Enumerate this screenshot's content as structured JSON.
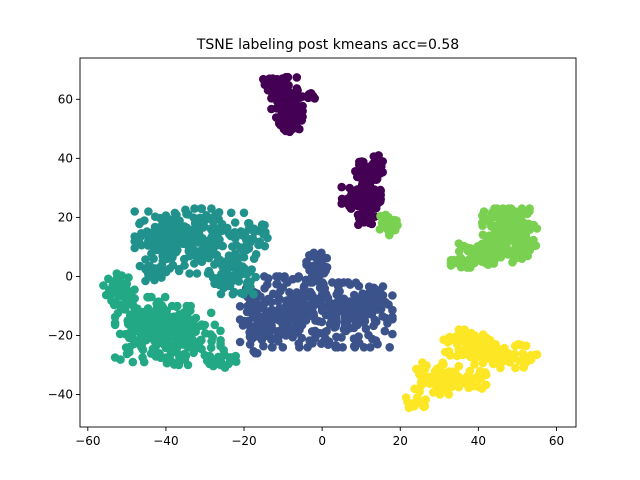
{
  "chart_data": {
    "type": "scatter",
    "title": "TSNE labeling post kmeans acc=0.58",
    "xlabel": "",
    "ylabel": "",
    "xlim": [
      -62,
      65
    ],
    "ylim": [
      -51,
      74
    ],
    "xticks": [
      -60,
      -40,
      -20,
      0,
      20,
      40,
      60
    ],
    "yticks": [
      -40,
      -20,
      0,
      20,
      40,
      60
    ],
    "xtick_labels": [
      "−60",
      "−40",
      "−20",
      "0",
      "20",
      "40",
      "60"
    ],
    "ytick_labels": [
      "−40",
      "−20",
      "0",
      "20",
      "40",
      "60"
    ],
    "grid": false,
    "legend": "none",
    "clusters": [
      {
        "label": 0,
        "color": "#440154",
        "blobs": [
          {
            "cx": -11,
            "cy": 65,
            "rx": 4.5,
            "ry": 2.5,
            "n": 50
          },
          {
            "cx": -9,
            "cy": 58,
            "rx": 4,
            "ry": 5,
            "n": 60
          },
          {
            "cx": -8,
            "cy": 52,
            "rx": 3,
            "ry": 3,
            "n": 40
          },
          {
            "cx": -3,
            "cy": 61,
            "rx": 1.5,
            "ry": 1.2,
            "n": 12
          },
          {
            "cx": 12,
            "cy": 36,
            "rx": 3.5,
            "ry": 5,
            "n": 60
          },
          {
            "cx": 10,
            "cy": 27,
            "rx": 5,
            "ry": 4,
            "n": 70
          },
          {
            "cx": 11,
            "cy": 20,
            "rx": 2.5,
            "ry": 2.5,
            "n": 30
          }
        ]
      },
      {
        "label": 1,
        "color": "#3b528b",
        "blobs": [
          {
            "cx": -17,
            "cy": -15,
            "rx": 4,
            "ry": 11,
            "n": 90
          },
          {
            "cx": -8,
            "cy": -12,
            "rx": 8,
            "ry": 12,
            "n": 160
          },
          {
            "cx": -1,
            "cy": 3,
            "rx": 3,
            "ry": 5,
            "n": 40
          },
          {
            "cx": 6,
            "cy": -13,
            "rx": 12,
            "ry": 11,
            "n": 200
          },
          {
            "cx": 12,
            "cy": -8,
            "rx": 4,
            "ry": 4,
            "n": 30
          }
        ]
      },
      {
        "label": 2,
        "color": "#21918c",
        "blobs": [
          {
            "cx": -40,
            "cy": 14,
            "rx": 8,
            "ry": 8,
            "n": 100
          },
          {
            "cx": -30,
            "cy": 12,
            "rx": 10,
            "ry": 11,
            "n": 160
          },
          {
            "cx": -23,
            "cy": 0,
            "rx": 6,
            "ry": 6,
            "n": 70
          },
          {
            "cx": -43,
            "cy": 2,
            "rx": 4,
            "ry": 4,
            "n": 30
          },
          {
            "cx": -18,
            "cy": 12,
            "rx": 4,
            "ry": 6,
            "n": 40
          }
        ]
      },
      {
        "label": 3,
        "color": "#22a884",
        "blobs": [
          {
            "cx": -52,
            "cy": -5,
            "rx": 4,
            "ry": 6,
            "n": 50
          },
          {
            "cx": -45,
            "cy": -18,
            "rx": 8,
            "ry": 11,
            "n": 150
          },
          {
            "cx": -35,
            "cy": -20,
            "rx": 9,
            "ry": 10,
            "n": 140
          },
          {
            "cx": -26,
            "cy": -28,
            "rx": 4,
            "ry": 3,
            "n": 30
          }
        ]
      },
      {
        "label": 4,
        "color": "#7ad151",
        "blobs": [
          {
            "cx": 17,
            "cy": 18,
            "rx": 2.5,
            "ry": 4,
            "n": 35
          },
          {
            "cx": 48,
            "cy": 17,
            "rx": 7,
            "ry": 6,
            "n": 130
          },
          {
            "cx": 42,
            "cy": 8,
            "rx": 7,
            "ry": 5,
            "n": 80
          },
          {
            "cx": 51,
            "cy": 10,
            "rx": 4,
            "ry": 4,
            "n": 40
          },
          {
            "cx": 36,
            "cy": 5,
            "rx": 3,
            "ry": 2,
            "n": 20
          }
        ]
      },
      {
        "label": 5,
        "color": "#fde725",
        "blobs": [
          {
            "cx": 29,
            "cy": -34,
            "rx": 6,
            "ry": 6,
            "n": 90
          },
          {
            "cx": 37,
            "cy": -23,
            "rx": 6,
            "ry": 5,
            "n": 80
          },
          {
            "cx": 47,
            "cy": -27,
            "rx": 8,
            "ry": 4,
            "n": 80
          },
          {
            "cx": 24,
            "cy": -43,
            "rx": 2.5,
            "ry": 2,
            "n": 20
          },
          {
            "cx": 38,
            "cy": -35,
            "rx": 4,
            "ry": 3,
            "n": 30
          }
        ]
      }
    ]
  }
}
